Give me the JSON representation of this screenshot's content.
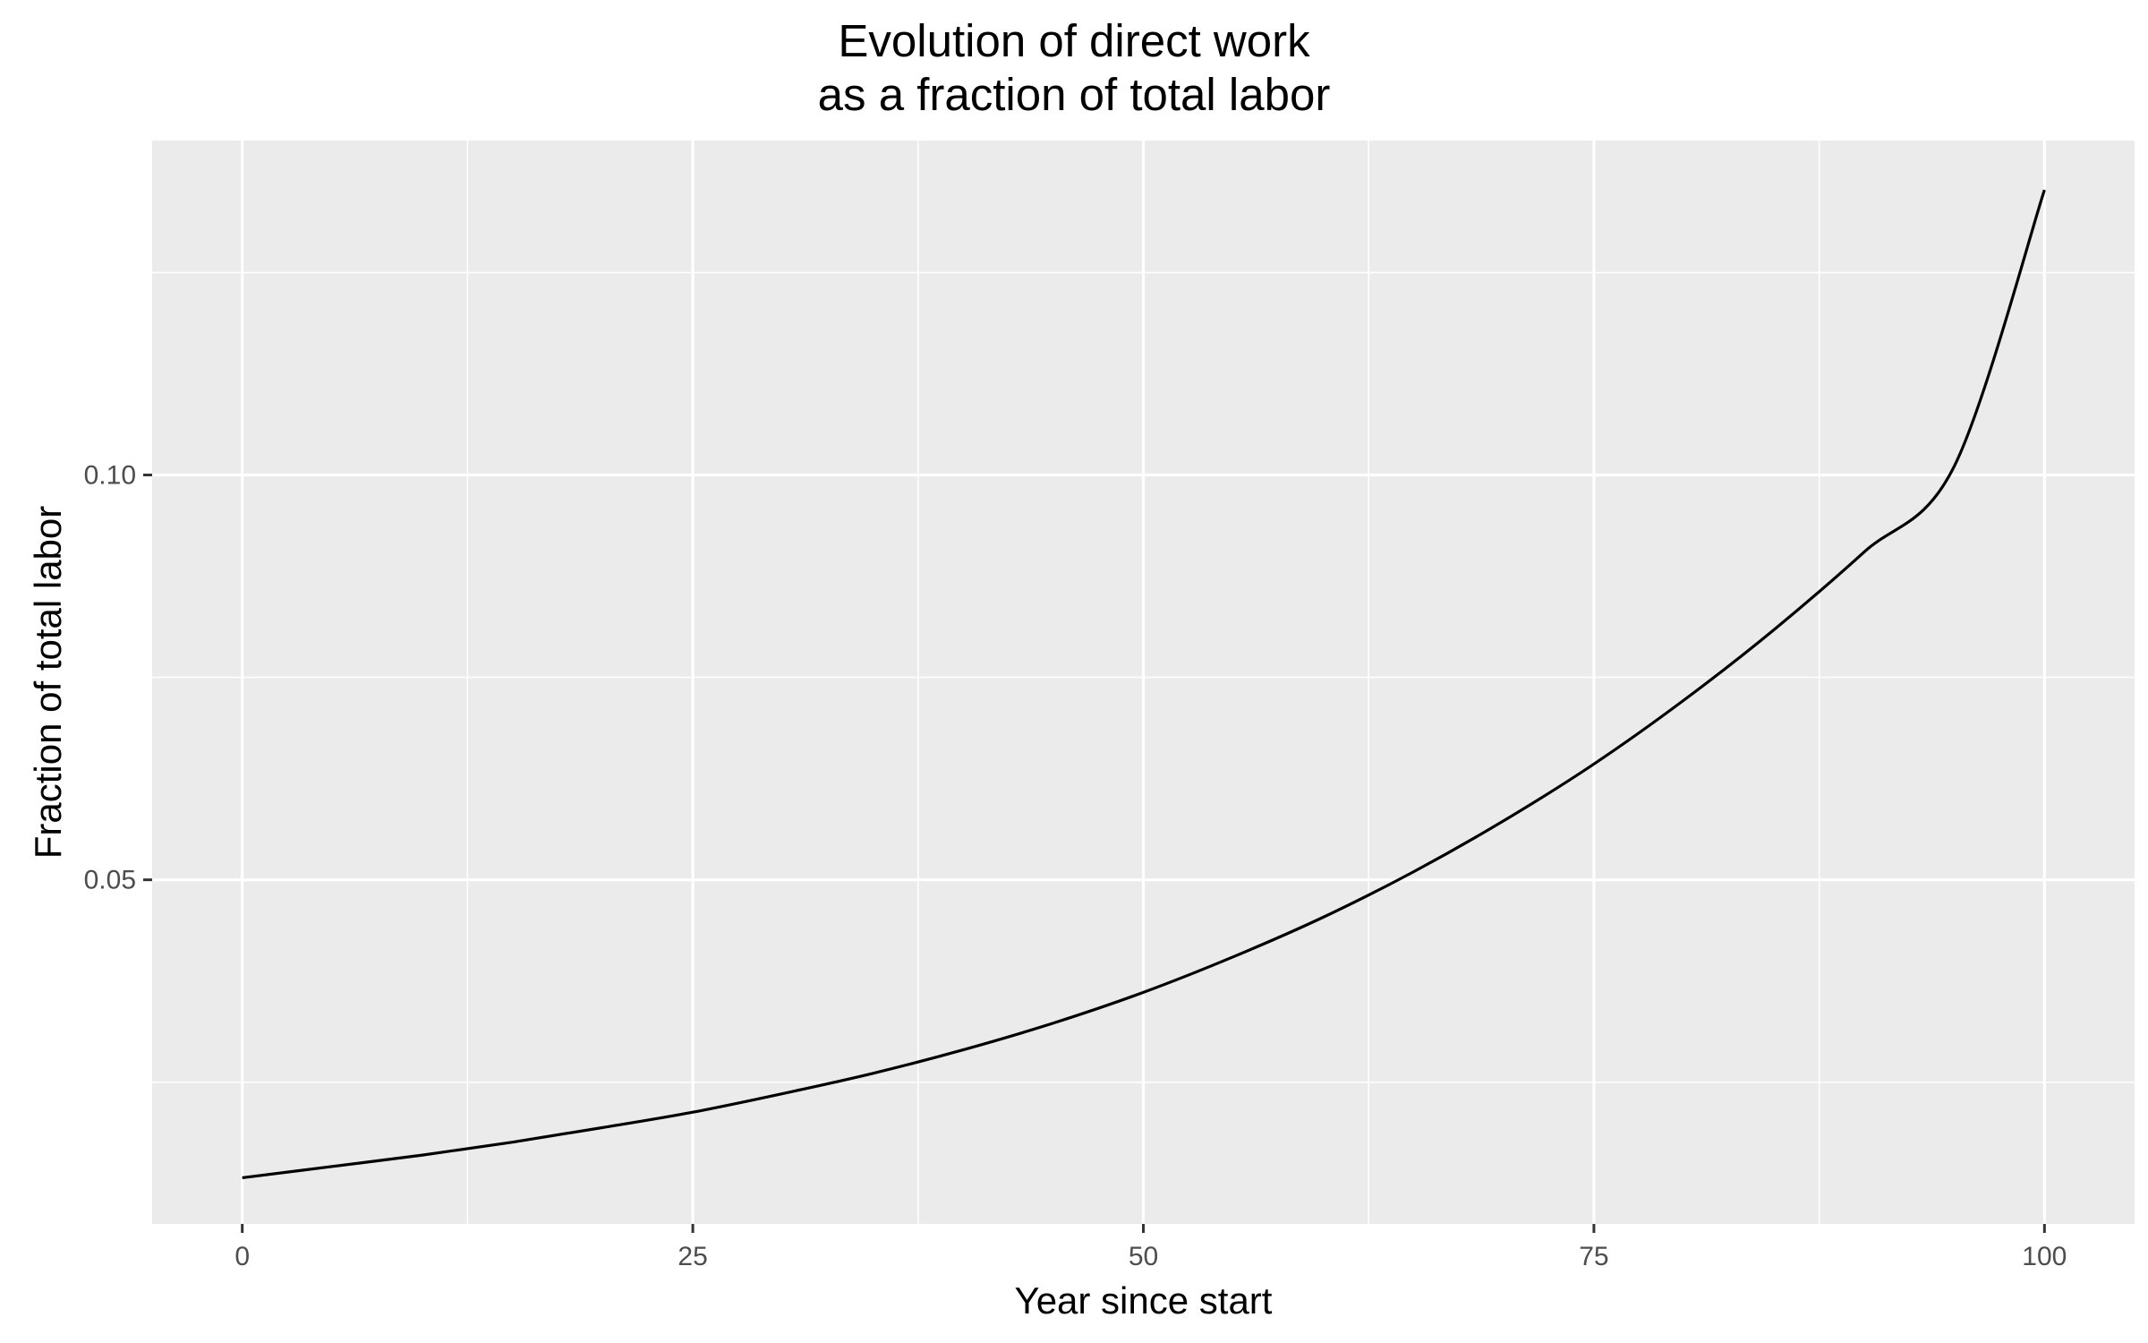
{
  "chart_data": {
    "type": "line",
    "title": "Evolution of direct work\nas a fraction of total labor",
    "title_lines": [
      "Evolution of direct work",
      "as a fraction of total labor"
    ],
    "xlabel": "Year since start",
    "ylabel": "Fraction of total labor",
    "xlim": [
      -5,
      105
    ],
    "ylim": [
      0.0075,
      0.1413
    ],
    "xticks": [
      0,
      25,
      50,
      75,
      100
    ],
    "xtick_labels": [
      "0",
      "25",
      "50",
      "75",
      "100"
    ],
    "yticks": [
      0.05,
      0.1
    ],
    "ytick_labels": [
      "0.05",
      "0.10"
    ],
    "y_minor_gridlines": [
      0.025,
      0.075,
      0.125
    ],
    "x_minor_gridlines": [
      12.5,
      37.5,
      62.5,
      87.5
    ],
    "grid": true,
    "colors": {
      "panel": "#ebebeb",
      "grid": "#ffffff",
      "line": "#000000"
    },
    "series": [
      {
        "x": [
          0,
          5,
          10,
          15,
          20,
          25,
          30,
          35,
          40,
          45,
          50,
          55,
          60,
          65,
          70,
          75,
          80,
          85,
          90,
          95,
          100
        ],
        "values": [
          0.0132,
          0.0146,
          0.016,
          0.0176,
          0.0194,
          0.0213,
          0.0236,
          0.0261,
          0.029,
          0.0323,
          0.0361,
          0.0405,
          0.0454,
          0.051,
          0.0573,
          0.0643,
          0.0722,
          0.0809,
          0.0905,
          0.1011,
          0.1352
        ]
      }
    ]
  }
}
